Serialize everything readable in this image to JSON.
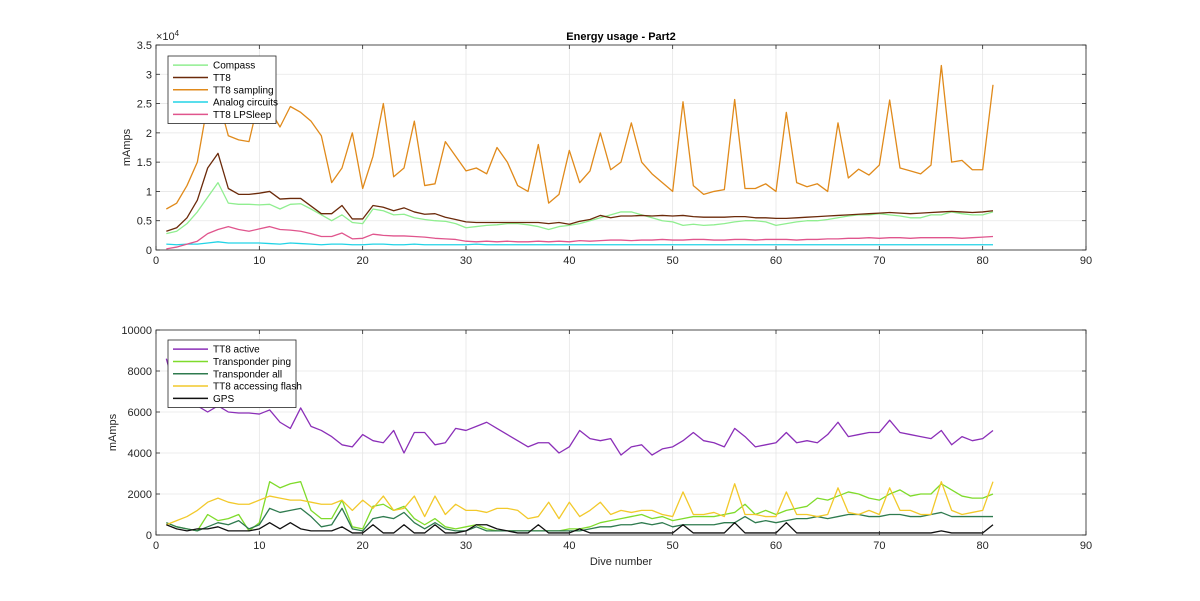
{
  "chart_data": [
    {
      "type": "line",
      "title": "Energy usage - Part2",
      "xlabel": "",
      "ylabel": "mAmps",
      "xlim": [
        0,
        90
      ],
      "ylim": [
        0,
        35000
      ],
      "xticks": [
        0,
        10,
        20,
        30,
        40,
        50,
        60,
        70,
        80,
        90
      ],
      "yticks": [
        0,
        5000,
        10000,
        15000,
        20000,
        25000,
        30000,
        35000
      ],
      "ytick_labels": [
        "0",
        "0.5",
        "1",
        "1.5",
        "2",
        "2.5",
        "3",
        "3.5"
      ],
      "y_exponent_label": "×10",
      "y_exponent_power": "4",
      "grid": true,
      "legend_position": "top-left",
      "x": [
        1,
        2,
        3,
        4,
        5,
        6,
        7,
        8,
        9,
        10,
        11,
        12,
        13,
        14,
        15,
        16,
        17,
        18,
        19,
        20,
        21,
        22,
        23,
        24,
        25,
        26,
        27,
        28,
        29,
        30,
        31,
        32,
        33,
        34,
        35,
        36,
        37,
        38,
        39,
        40,
        41,
        42,
        43,
        44,
        45,
        46,
        47,
        48,
        49,
        50,
        51,
        52,
        53,
        54,
        55,
        56,
        57,
        58,
        59,
        60,
        61,
        62,
        63,
        64,
        65,
        66,
        67,
        68,
        69,
        70,
        71,
        72,
        73,
        74,
        75,
        76,
        77,
        78,
        79,
        80,
        81
      ],
      "series": [
        {
          "name": "Compass",
          "color": "#90ee90",
          "values": [
            2800,
            3200,
            4500,
            6500,
            9000,
            11500,
            8000,
            7800,
            7800,
            7700,
            7800,
            7000,
            7800,
            7900,
            7000,
            6000,
            5000,
            6000,
            4700,
            4500,
            7000,
            6700,
            6000,
            6100,
            5500,
            5200,
            5000,
            4900,
            4500,
            3800,
            4000,
            4200,
            4300,
            4500,
            4500,
            4300,
            4000,
            3500,
            4000,
            4200,
            4500,
            5000,
            5500,
            6000,
            6500,
            6500,
            6000,
            5500,
            5000,
            4800,
            4200,
            4400,
            4200,
            4300,
            4500,
            4800,
            5000,
            5000,
            4800,
            4200,
            4500,
            4800,
            5000,
            5000,
            5200,
            5500,
            5800,
            6000,
            6000,
            6200,
            6000,
            5800,
            5500,
            5500,
            6000,
            6000,
            6500,
            6200,
            6000,
            6000,
            6500
          ]
        },
        {
          "name": "TT8",
          "color": "#6b2a0a",
          "values": [
            3200,
            3800,
            5500,
            8500,
            14000,
            16500,
            10500,
            9500,
            9500,
            9700,
            10000,
            8700,
            8800,
            8800,
            7500,
            6200,
            6200,
            7600,
            5300,
            5300,
            7600,
            7300,
            6700,
            7200,
            6500,
            6100,
            6200,
            5600,
            5200,
            4800,
            4700,
            4700,
            4700,
            4700,
            4700,
            4700,
            4700,
            4500,
            4700,
            4400,
            4900,
            5200,
            5900,
            5500,
            5800,
            5800,
            5900,
            5800,
            5900,
            5800,
            5900,
            5700,
            5600,
            5600,
            5600,
            5700,
            5700,
            5500,
            5500,
            5400,
            5400,
            5500,
            5600,
            5700,
            5800,
            5900,
            6000,
            6100,
            6200,
            6300,
            6400,
            6300,
            6200,
            6300,
            6400,
            6500,
            6600,
            6500,
            6400,
            6500,
            6700
          ]
        },
        {
          "name": "TT8 sampling",
          "color": "#e08a1b",
          "values": [
            7000,
            8000,
            11000,
            15000,
            25000,
            26000,
            19500,
            18800,
            18500,
            26000,
            24000,
            21000,
            24500,
            23500,
            22000,
            19500,
            11500,
            14000,
            20000,
            10500,
            16000,
            25000,
            12500,
            14000,
            22000,
            11000,
            11300,
            18500,
            16000,
            13500,
            14000,
            13000,
            17500,
            15000,
            11000,
            10000,
            18000,
            8000,
            9500,
            17000,
            11500,
            13500,
            20000,
            13700,
            15000,
            21700,
            15000,
            13000,
            11500,
            10000,
            25300,
            11000,
            9500,
            10000,
            10300,
            25700,
            10500,
            10500,
            11300,
            10000,
            23500,
            11500,
            10800,
            11300,
            10000,
            21700,
            12300,
            13800,
            12800,
            14500,
            25600,
            14000,
            13500,
            13000,
            14500,
            31500,
            15000,
            15300,
            13700,
            13700,
            28200
          ]
        },
        {
          "name": "Analog circuits",
          "color": "#22d3e6",
          "values": [
            1000,
            900,
            1000,
            1000,
            1200,
            1400,
            1200,
            1200,
            1200,
            1200,
            1100,
            1000,
            1200,
            1100,
            1000,
            900,
            1000,
            1000,
            900,
            900,
            1000,
            1000,
            900,
            900,
            1000,
            900,
            900,
            900,
            900,
            900,
            1000,
            900,
            900,
            900,
            900,
            900,
            900,
            900,
            900,
            900,
            900,
            900,
            900,
            900,
            900,
            900,
            900,
            900,
            900,
            900,
            900,
            900,
            900,
            900,
            900,
            900,
            900,
            900,
            900,
            900,
            900,
            900,
            900,
            900,
            900,
            900,
            900,
            900,
            900,
            900,
            900,
            900,
            900,
            900,
            900,
            900,
            900,
            900,
            900,
            900,
            900
          ]
        },
        {
          "name": "TT8 LPSleep",
          "color": "#e0558d",
          "values": [
            200,
            500,
            1000,
            1500,
            2800,
            3500,
            4000,
            3500,
            3200,
            3600,
            4000,
            3500,
            3400,
            3200,
            2800,
            2300,
            2300,
            2900,
            1900,
            2000,
            2700,
            2500,
            2400,
            2400,
            2300,
            2200,
            2000,
            1900,
            1800,
            1500,
            1400,
            1500,
            1400,
            1500,
            1400,
            1400,
            1500,
            1400,
            1500,
            1400,
            1600,
            1500,
            1600,
            1700,
            1700,
            1600,
            1700,
            1700,
            1800,
            1700,
            1700,
            1800,
            1800,
            1700,
            1700,
            1800,
            1800,
            1700,
            1800,
            1800,
            1800,
            1700,
            1800,
            1800,
            1900,
            1900,
            2000,
            2000,
            2100,
            2000,
            2100,
            2100,
            2000,
            2100,
            2100,
            2100,
            2100,
            2000,
            2100,
            2200,
            2300
          ]
        }
      ]
    },
    {
      "type": "line",
      "title": "",
      "xlabel": "Dive number",
      "ylabel": "mAmps",
      "xlim": [
        0,
        90
      ],
      "ylim": [
        0,
        10000
      ],
      "xticks": [
        0,
        10,
        20,
        30,
        40,
        50,
        60,
        70,
        80,
        90
      ],
      "yticks": [
        0,
        2000,
        4000,
        6000,
        8000,
        10000
      ],
      "ytick_labels": [
        "0",
        "2000",
        "4000",
        "6000",
        "8000",
        "10000"
      ],
      "grid": true,
      "legend_position": "top-left",
      "x": [
        1,
        2,
        3,
        4,
        5,
        6,
        7,
        8,
        9,
        10,
        11,
        12,
        13,
        14,
        15,
        16,
        17,
        18,
        19,
        20,
        21,
        22,
        23,
        24,
        25,
        26,
        27,
        28,
        29,
        30,
        31,
        32,
        33,
        34,
        35,
        36,
        37,
        38,
        39,
        40,
        41,
        42,
        43,
        44,
        45,
        46,
        47,
        48,
        49,
        50,
        51,
        52,
        53,
        54,
        55,
        56,
        57,
        58,
        59,
        60,
        61,
        62,
        63,
        64,
        65,
        66,
        67,
        68,
        69,
        70,
        71,
        72,
        73,
        74,
        75,
        76,
        77,
        78,
        79,
        80,
        81
      ],
      "series": [
        {
          "name": "TT8 active",
          "color": "#8b2fb8",
          "values": [
            8600,
            6800,
            6300,
            6300,
            6000,
            6300,
            6000,
            5950,
            5950,
            5900,
            6100,
            5500,
            5200,
            6200,
            5300,
            5100,
            4800,
            4400,
            4300,
            4900,
            4600,
            4500,
            5100,
            4000,
            5000,
            5000,
            4400,
            4500,
            5200,
            5100,
            5300,
            5500,
            5200,
            4900,
            4600,
            4300,
            4500,
            4500,
            4000,
            4300,
            5100,
            4700,
            4600,
            4700,
            3900,
            4300,
            4400,
            3900,
            4200,
            4300,
            4600,
            5000,
            4600,
            4500,
            4300,
            5200,
            4800,
            4300,
            4400,
            4500,
            5000,
            4500,
            4600,
            4500,
            4900,
            5500,
            4800,
            4900,
            5000,
            5000,
            5600,
            5000,
            4900,
            4800,
            4700,
            5100,
            4400,
            4800,
            4600,
            4700,
            5100
          ]
        },
        {
          "name": "Transponder ping",
          "color": "#7fdb2b",
          "values": [
            600,
            400,
            300,
            200,
            1000,
            700,
            800,
            1000,
            200,
            600,
            2600,
            2300,
            2500,
            2600,
            1200,
            800,
            800,
            1700,
            400,
            300,
            1400,
            1500,
            1200,
            1400,
            800,
            500,
            800,
            400,
            300,
            400,
            500,
            300,
            200,
            200,
            200,
            200,
            200,
            200,
            200,
            300,
            300,
            400,
            600,
            700,
            800,
            900,
            1000,
            800,
            900,
            700,
            800,
            900,
            900,
            900,
            1000,
            1100,
            1500,
            1000,
            1200,
            1000,
            1200,
            1300,
            1400,
            1800,
            1700,
            1900,
            2100,
            2000,
            1800,
            1700,
            2000,
            2200,
            1900,
            2000,
            2000,
            2500,
            2200,
            1900,
            1800,
            1800,
            2000
          ]
        },
        {
          "name": "Transponder all",
          "color": "#2f7b4f",
          "values": [
            600,
            400,
            300,
            200,
            400,
            600,
            500,
            700,
            300,
            500,
            1300,
            1100,
            1200,
            1300,
            900,
            400,
            500,
            1300,
            300,
            200,
            800,
            900,
            800,
            1100,
            600,
            300,
            600,
            300,
            200,
            200,
            400,
            200,
            200,
            200,
            200,
            200,
            200,
            200,
            200,
            200,
            200,
            300,
            400,
            400,
            500,
            500,
            600,
            500,
            600,
            400,
            500,
            500,
            500,
            500,
            600,
            600,
            900,
            600,
            700,
            600,
            700,
            800,
            800,
            900,
            800,
            900,
            1000,
            1000,
            900,
            900,
            1000,
            1000,
            900,
            900,
            1000,
            1100,
            900,
            900,
            900,
            900,
            900
          ]
        },
        {
          "name": "TT8 accessing flash",
          "color": "#f2c92b",
          "values": [
            500,
            700,
            900,
            1200,
            1600,
            1800,
            1600,
            1500,
            1500,
            1700,
            1900,
            1800,
            1700,
            1700,
            1600,
            1500,
            1500,
            1700,
            1200,
            1700,
            1300,
            1900,
            1200,
            1300,
            1900,
            900,
            1900,
            1000,
            1500,
            1200,
            1200,
            1100,
            1300,
            1300,
            1200,
            800,
            900,
            1600,
            800,
            1600,
            900,
            1200,
            1600,
            1000,
            1200,
            1100,
            1200,
            1200,
            1000,
            900,
            2100,
            1000,
            1000,
            1100,
            900,
            2500,
            1000,
            1000,
            900,
            900,
            2100,
            1000,
            1000,
            900,
            1000,
            2300,
            1100,
            1000,
            1200,
            1000,
            2300,
            1200,
            1200,
            1000,
            1000,
            2600,
            1200,
            1000,
            1100,
            1200,
            2600
          ]
        },
        {
          "name": "GPS",
          "color": "#111111",
          "values": [
            500,
            300,
            200,
            300,
            300,
            400,
            200,
            200,
            200,
            300,
            600,
            300,
            600,
            300,
            200,
            200,
            200,
            400,
            100,
            100,
            500,
            100,
            100,
            500,
            100,
            100,
            500,
            100,
            100,
            200,
            500,
            500,
            300,
            200,
            100,
            100,
            500,
            100,
            100,
            100,
            300,
            100,
            100,
            100,
            100,
            100,
            100,
            100,
            100,
            100,
            500,
            100,
            100,
            100,
            100,
            600,
            100,
            100,
            100,
            100,
            600,
            100,
            100,
            100,
            100,
            100,
            100,
            100,
            100,
            100,
            100,
            100,
            100,
            100,
            100,
            200,
            100,
            100,
            100,
            100,
            500
          ]
        }
      ]
    }
  ]
}
